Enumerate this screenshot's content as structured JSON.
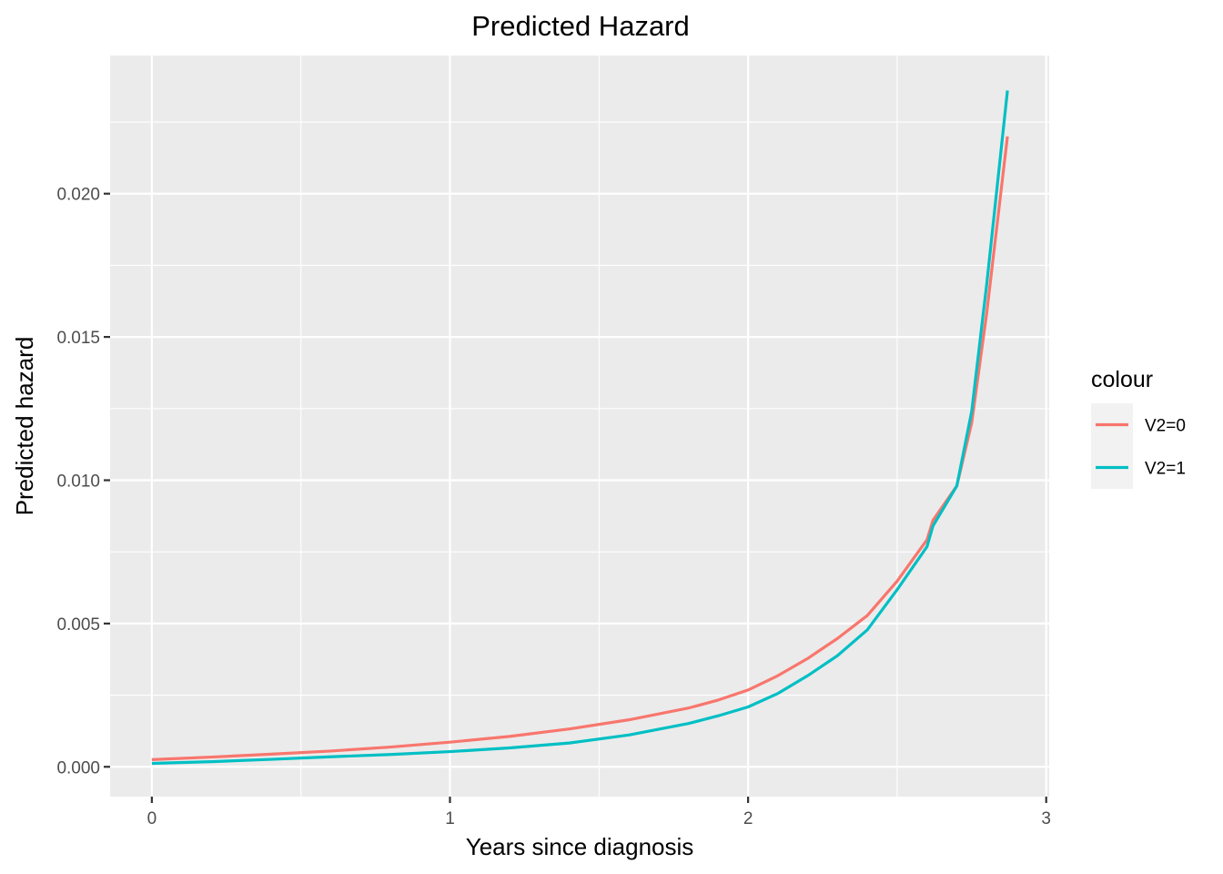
{
  "chart_data": {
    "type": "line",
    "title": "Predicted Hazard",
    "xlabel": "Years since diagnosis",
    "ylabel": "Predicted hazard",
    "xlim": [
      -0.14,
      3.01
    ],
    "ylim": [
      -0.00104,
      0.02482
    ],
    "x_ticks": [
      0,
      1,
      2,
      3
    ],
    "x_tick_labels": [
      "0",
      "1",
      "2",
      "3"
    ],
    "y_ticks": [
      0.0,
      0.005,
      0.01,
      0.015,
      0.02
    ],
    "y_tick_labels": [
      "0.000",
      "0.005",
      "0.010",
      "0.015",
      "0.020"
    ],
    "grid": true,
    "background": "#ebebeb",
    "legend": {
      "title": "colour",
      "position": "right"
    },
    "series": [
      {
        "name": "V2=0",
        "color": "#f8766d",
        "x": [
          0.0,
          0.2,
          0.4,
          0.6,
          0.8,
          1.0,
          1.2,
          1.4,
          1.6,
          1.8,
          1.9,
          2.0,
          2.1,
          2.2,
          2.3,
          2.4,
          2.5,
          2.6,
          2.62,
          2.7,
          2.75,
          2.8,
          2.87
        ],
        "y": [
          0.00025,
          0.00034,
          0.00044,
          0.00055,
          0.00069,
          0.00086,
          0.00106,
          0.00132,
          0.00164,
          0.00205,
          0.00233,
          0.00268,
          0.00318,
          0.00378,
          0.00448,
          0.00528,
          0.00648,
          0.00792,
          0.0086,
          0.0098,
          0.012,
          0.0158,
          0.022
        ]
      },
      {
        "name": "V2=1",
        "color": "#00bfc4",
        "x": [
          0.0,
          0.2,
          0.4,
          0.6,
          0.8,
          1.0,
          1.2,
          1.4,
          1.6,
          1.8,
          1.9,
          2.0,
          2.1,
          2.2,
          2.3,
          2.4,
          2.5,
          2.6,
          2.62,
          2.7,
          2.75,
          2.8,
          2.87
        ],
        "y": [
          0.00012,
          0.00018,
          0.00026,
          0.00035,
          0.00043,
          0.00053,
          0.00066,
          0.00083,
          0.00111,
          0.00151,
          0.00178,
          0.00209,
          0.00256,
          0.00318,
          0.00388,
          0.00478,
          0.00618,
          0.00768,
          0.0084,
          0.0098,
          0.0124,
          0.0168,
          0.0236
        ]
      }
    ]
  }
}
